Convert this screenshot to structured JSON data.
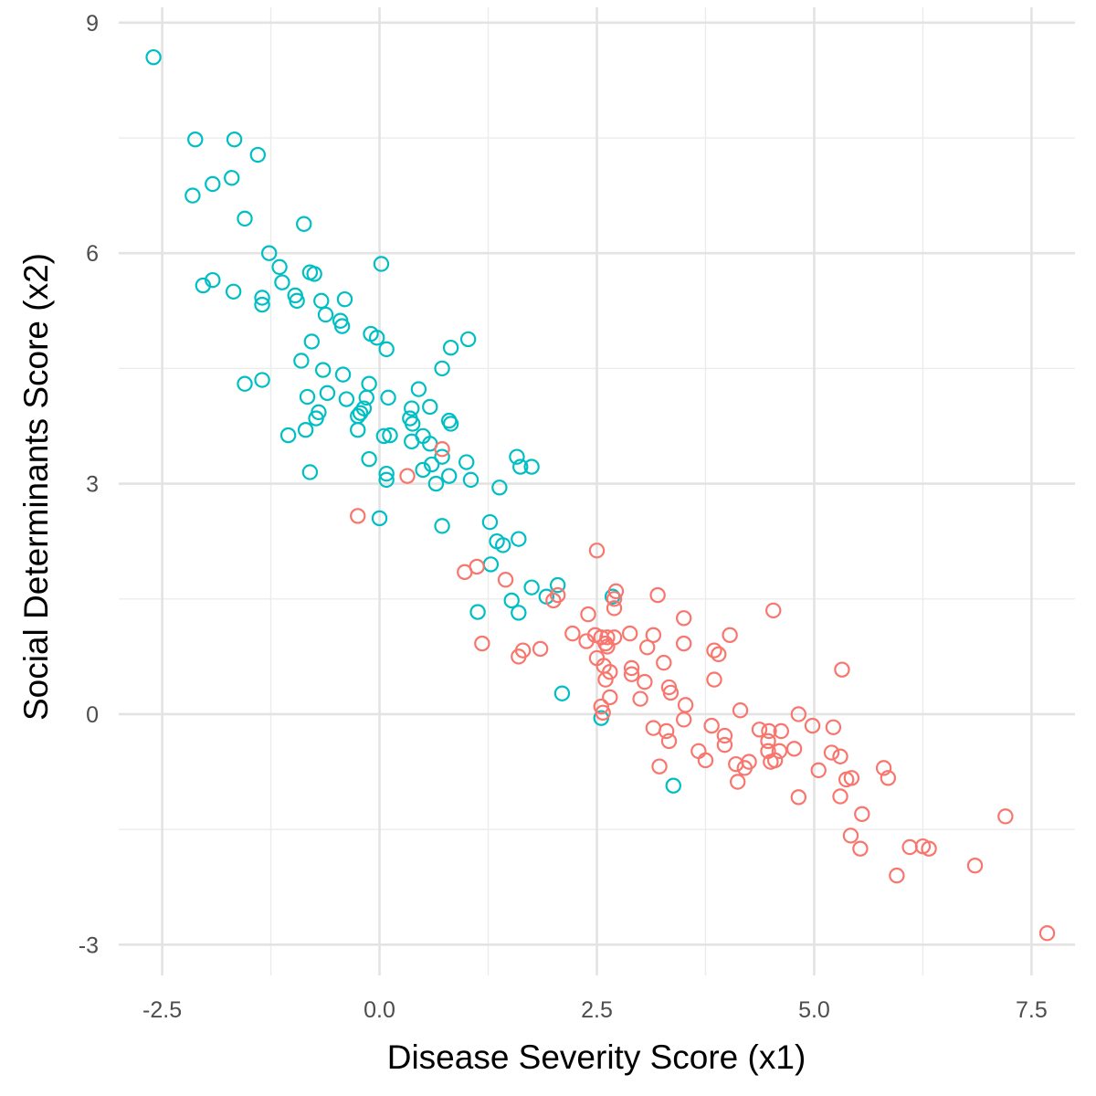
{
  "chart_data": {
    "type": "scatter",
    "title": "",
    "xlabel": "Disease Severity Score (x1)",
    "ylabel": "Social Determinants Score (x2)",
    "xlim": [
      -3.0,
      8.0
    ],
    "ylim": [
      -3.4,
      9.2
    ],
    "x_ticks": [
      -2.5,
      0.0,
      2.5,
      5.0,
      7.5
    ],
    "x_tick_labels": [
      "-2.5",
      "0.0",
      "2.5",
      "5.0",
      "7.5"
    ],
    "y_ticks": [
      -3,
      0,
      3,
      6,
      9
    ],
    "y_tick_labels": [
      "-3",
      "0",
      "3",
      "6",
      "9"
    ],
    "x_minor": [
      -1.25,
      1.25,
      3.75,
      6.25
    ],
    "y_minor": [
      -1.5,
      1.5,
      4.5,
      7.5
    ],
    "grid": true,
    "legend": "none",
    "series": [
      {
        "color": "#00BFC4",
        "points": [
          [
            -2.6,
            8.55
          ],
          [
            -2.12,
            7.48
          ],
          [
            -1.67,
            7.48
          ],
          [
            -1.4,
            7.28
          ],
          [
            -1.92,
            6.9
          ],
          [
            -2.15,
            6.75
          ],
          [
            -1.7,
            6.98
          ],
          [
            -1.55,
            6.45
          ],
          [
            -0.87,
            6.38
          ],
          [
            -1.27,
            6.0
          ],
          [
            -1.15,
            5.82
          ],
          [
            -0.8,
            5.75
          ],
          [
            -0.75,
            5.73
          ],
          [
            0.02,
            5.86
          ],
          [
            -1.92,
            5.65
          ],
          [
            -2.03,
            5.58
          ],
          [
            -1.12,
            5.62
          ],
          [
            -1.68,
            5.5
          ],
          [
            -1.35,
            5.42
          ],
          [
            -1.35,
            5.33
          ],
          [
            -0.97,
            5.45
          ],
          [
            -0.95,
            5.38
          ],
          [
            -0.67,
            5.38
          ],
          [
            -0.4,
            5.4
          ],
          [
            -0.62,
            5.2
          ],
          [
            -0.45,
            5.12
          ],
          [
            -0.43,
            5.05
          ],
          [
            -0.1,
            4.95
          ],
          [
            -0.03,
            4.9
          ],
          [
            0.08,
            4.75
          ],
          [
            0.82,
            4.77
          ],
          [
            1.02,
            4.88
          ],
          [
            -0.78,
            4.85
          ],
          [
            -0.9,
            4.6
          ],
          [
            -0.65,
            4.48
          ],
          [
            -0.42,
            4.42
          ],
          [
            0.72,
            4.5
          ],
          [
            -1.35,
            4.35
          ],
          [
            -1.55,
            4.3
          ],
          [
            -0.12,
            4.3
          ],
          [
            0.45,
            4.23
          ],
          [
            -0.83,
            4.13
          ],
          [
            -0.6,
            4.18
          ],
          [
            -0.38,
            4.1
          ],
          [
            -0.15,
            4.12
          ],
          [
            0.1,
            4.12
          ],
          [
            0.37,
            3.98
          ],
          [
            0.58,
            4.0
          ],
          [
            -0.18,
            3.98
          ],
          [
            -0.22,
            3.92
          ],
          [
            -0.25,
            3.88
          ],
          [
            -0.7,
            3.93
          ],
          [
            -0.73,
            3.85
          ],
          [
            0.35,
            3.85
          ],
          [
            0.38,
            3.78
          ],
          [
            0.8,
            3.82
          ],
          [
            0.82,
            3.78
          ],
          [
            -0.85,
            3.7
          ],
          [
            -0.25,
            3.7
          ],
          [
            0.05,
            3.62
          ],
          [
            0.12,
            3.63
          ],
          [
            0.5,
            3.62
          ],
          [
            0.58,
            3.52
          ],
          [
            0.37,
            3.55
          ],
          [
            -1.05,
            3.63
          ],
          [
            0.72,
            3.35
          ],
          [
            -0.12,
            3.32
          ],
          [
            0.5,
            3.18
          ],
          [
            0.6,
            3.25
          ],
          [
            0.65,
            3.0
          ],
          [
            0.8,
            3.1
          ],
          [
            0.08,
            3.13
          ],
          [
            0.08,
            3.05
          ],
          [
            1.0,
            3.28
          ],
          [
            1.05,
            3.05
          ],
          [
            -0.8,
            3.15
          ],
          [
            1.58,
            3.35
          ],
          [
            1.62,
            3.22
          ],
          [
            1.75,
            3.22
          ],
          [
            1.38,
            2.95
          ],
          [
            0.0,
            2.55
          ],
          [
            0.72,
            2.45
          ],
          [
            1.27,
            2.5
          ],
          [
            1.35,
            2.25
          ],
          [
            1.42,
            2.2
          ],
          [
            1.6,
            2.28
          ],
          [
            1.28,
            1.95
          ],
          [
            1.75,
            1.65
          ],
          [
            1.92,
            1.53
          ],
          [
            2.05,
            1.68
          ],
          [
            1.52,
            1.48
          ],
          [
            1.6,
            1.32
          ],
          [
            1.13,
            1.33
          ],
          [
            2.68,
            1.53
          ],
          [
            2.1,
            0.27
          ],
          [
            2.55,
            -0.05
          ],
          [
            3.38,
            -0.93
          ]
        ]
      },
      {
        "color": "#F8766D",
        "points": [
          [
            0.72,
            3.45
          ],
          [
            0.32,
            3.1
          ],
          [
            -0.25,
            2.58
          ],
          [
            2.5,
            2.13
          ],
          [
            0.98,
            1.85
          ],
          [
            1.12,
            1.92
          ],
          [
            1.45,
            1.75
          ],
          [
            2.05,
            1.55
          ],
          [
            2.0,
            1.48
          ],
          [
            2.72,
            1.6
          ],
          [
            2.7,
            1.5
          ],
          [
            2.7,
            1.38
          ],
          [
            3.2,
            1.55
          ],
          [
            4.53,
            1.35
          ],
          [
            2.22,
            1.05
          ],
          [
            2.38,
            0.95
          ],
          [
            2.4,
            1.3
          ],
          [
            2.48,
            1.03
          ],
          [
            2.55,
            1.0
          ],
          [
            2.62,
            1.0
          ],
          [
            2.7,
            1.0
          ],
          [
            2.6,
            0.92
          ],
          [
            2.62,
            0.88
          ],
          [
            2.88,
            1.05
          ],
          [
            3.15,
            1.03
          ],
          [
            3.5,
            1.25
          ],
          [
            4.03,
            1.03
          ],
          [
            1.18,
            0.92
          ],
          [
            1.6,
            0.75
          ],
          [
            1.65,
            0.83
          ],
          [
            1.85,
            0.85
          ],
          [
            2.5,
            0.73
          ],
          [
            3.08,
            0.87
          ],
          [
            3.5,
            0.92
          ],
          [
            3.85,
            0.83
          ],
          [
            3.9,
            0.78
          ],
          [
            3.27,
            0.67
          ],
          [
            2.58,
            0.63
          ],
          [
            2.65,
            0.55
          ],
          [
            2.6,
            0.45
          ],
          [
            2.9,
            0.6
          ],
          [
            2.9,
            0.52
          ],
          [
            3.05,
            0.42
          ],
          [
            3.85,
            0.45
          ],
          [
            5.32,
            0.58
          ],
          [
            3.33,
            0.35
          ],
          [
            3.35,
            0.28
          ],
          [
            2.65,
            0.22
          ],
          [
            3.0,
            0.2
          ],
          [
            3.52,
            0.12
          ],
          [
            2.55,
            0.1
          ],
          [
            2.57,
            0.02
          ],
          [
            4.15,
            0.05
          ],
          [
            4.82,
            0.0
          ],
          [
            3.5,
            -0.07
          ],
          [
            3.15,
            -0.18
          ],
          [
            3.3,
            -0.22
          ],
          [
            3.82,
            -0.15
          ],
          [
            3.97,
            -0.28
          ],
          [
            4.37,
            -0.2
          ],
          [
            4.48,
            -0.22
          ],
          [
            4.62,
            -0.22
          ],
          [
            4.98,
            -0.15
          ],
          [
            5.22,
            -0.17
          ],
          [
            3.33,
            -0.35
          ],
          [
            3.97,
            -0.4
          ],
          [
            4.47,
            -0.35
          ],
          [
            4.47,
            -0.48
          ],
          [
            4.6,
            -0.48
          ],
          [
            4.77,
            -0.45
          ],
          [
            5.2,
            -0.5
          ],
          [
            3.67,
            -0.48
          ],
          [
            3.75,
            -0.6
          ],
          [
            4.1,
            -0.65
          ],
          [
            4.2,
            -0.7
          ],
          [
            4.25,
            -0.62
          ],
          [
            4.5,
            -0.62
          ],
          [
            4.55,
            -0.6
          ],
          [
            5.3,
            -0.55
          ],
          [
            5.05,
            -0.73
          ],
          [
            3.22,
            -0.68
          ],
          [
            5.37,
            -0.85
          ],
          [
            5.43,
            -0.83
          ],
          [
            5.8,
            -0.7
          ],
          [
            5.85,
            -0.83
          ],
          [
            4.12,
            -0.88
          ],
          [
            4.82,
            -1.08
          ],
          [
            5.3,
            -1.07
          ],
          [
            5.55,
            -1.3
          ],
          [
            5.42,
            -1.58
          ],
          [
            5.53,
            -1.75
          ],
          [
            6.1,
            -1.73
          ],
          [
            6.25,
            -1.72
          ],
          [
            6.32,
            -1.75
          ],
          [
            7.2,
            -1.33
          ],
          [
            6.85,
            -1.97
          ],
          [
            5.95,
            -2.1
          ],
          [
            7.68,
            -2.85
          ]
        ]
      }
    ]
  }
}
